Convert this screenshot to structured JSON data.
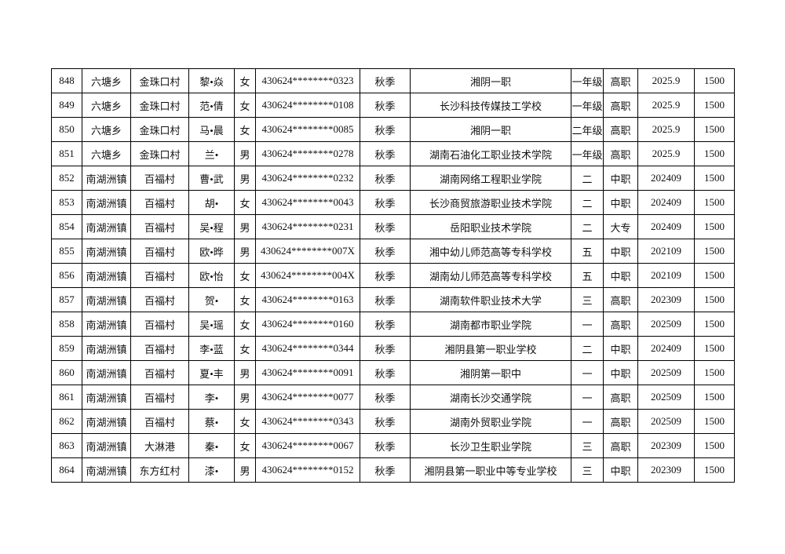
{
  "table": {
    "rows": [
      [
        "848",
        "六塘乡",
        "金珠口村",
        "黎•焱",
        "女",
        "430624********0323",
        "秋季",
        "湘阴一职",
        "一年级",
        "高职",
        "2025.9",
        "1500"
      ],
      [
        "849",
        "六塘乡",
        "金珠口村",
        "范•倩",
        "女",
        "430624********0108",
        "秋季",
        "长沙科技传媒技工学校",
        "一年级",
        "高职",
        "2025.9",
        "1500"
      ],
      [
        "850",
        "六塘乡",
        "金珠口村",
        "马•晨",
        "女",
        "430624********0085",
        "秋季",
        "湘阴一职",
        "二年级",
        "高职",
        "2025.9",
        "1500"
      ],
      [
        "851",
        "六塘乡",
        "金珠口村",
        "兰•",
        "男",
        "430624********0278",
        "秋季",
        "湖南石油化工职业技术学院",
        "一年级",
        "高职",
        "2025.9",
        "1500"
      ],
      [
        "852",
        "南湖洲镇",
        "百福村",
        "曹•武",
        "男",
        "430624********0232",
        "秋季",
        "湖南网络工程职业学院",
        "二",
        "中职",
        "202409",
        "1500"
      ],
      [
        "853",
        "南湖洲镇",
        "百福村",
        "胡•",
        "女",
        "430624********0043",
        "秋季",
        "长沙商贸旅游职业技术学院",
        "二",
        "中职",
        "202409",
        "1500"
      ],
      [
        "854",
        "南湖洲镇",
        "百福村",
        "吴•程",
        "男",
        "430624********0231",
        "秋季",
        "岳阳职业技术学院",
        "二",
        "大专",
        "202409",
        "1500"
      ],
      [
        "855",
        "南湖洲镇",
        "百福村",
        "欧•晔",
        "男",
        "430624********007X",
        "秋季",
        "湘中幼儿师范高等专科学校",
        "五",
        "中职",
        "202109",
        "1500"
      ],
      [
        "856",
        "南湖洲镇",
        "百福村",
        "欧•怡",
        "女",
        "430624********004X",
        "秋季",
        "湖南幼儿师范高等专科学校",
        "五",
        "中职",
        "202109",
        "1500"
      ],
      [
        "857",
        "南湖洲镇",
        "百福村",
        "贺•",
        "女",
        "430624********0163",
        "秋季",
        "湖南软件职业技术大学",
        "三",
        "高职",
        "202309",
        "1500"
      ],
      [
        "858",
        "南湖洲镇",
        "百福村",
        "吴•瑶",
        "女",
        "430624********0160",
        "秋季",
        "湖南都市职业学院",
        "一",
        "高职",
        "202509",
        "1500"
      ],
      [
        "859",
        "南湖洲镇",
        "百福村",
        "李•蓝",
        "女",
        "430624********0344",
        "秋季",
        "湘阴县第一职业学校",
        "二",
        "中职",
        "202409",
        "1500"
      ],
      [
        "860",
        "南湖洲镇",
        "百福村",
        "夏•丰",
        "男",
        "430624********0091",
        "秋季",
        "湘阴第一职中",
        "一",
        "中职",
        "202509",
        "1500"
      ],
      [
        "861",
        "南湖洲镇",
        "百福村",
        "李•",
        "男",
        "430624********0077",
        "秋季",
        "湖南长沙交通学院",
        "一",
        "高职",
        "202509",
        "1500"
      ],
      [
        "862",
        "南湖洲镇",
        "百福村",
        "蔡•",
        "女",
        "430624********0343",
        "秋季",
        "湖南外贸职业学院",
        "一",
        "高职",
        "202509",
        "1500"
      ],
      [
        "863",
        "南湖洲镇",
        "大淋港",
        "秦•",
        "女",
        "430624********0067",
        "秋季",
        "长沙卫生职业学院",
        "三",
        "高职",
        "202309",
        "1500"
      ],
      [
        "864",
        "南湖洲镇",
        "东方红村",
        "漆•",
        "男",
        "430624********0152",
        "秋季",
        "湘阴县第一职业中等专业学校",
        "三",
        "中职",
        "202309",
        "1500"
      ]
    ]
  }
}
